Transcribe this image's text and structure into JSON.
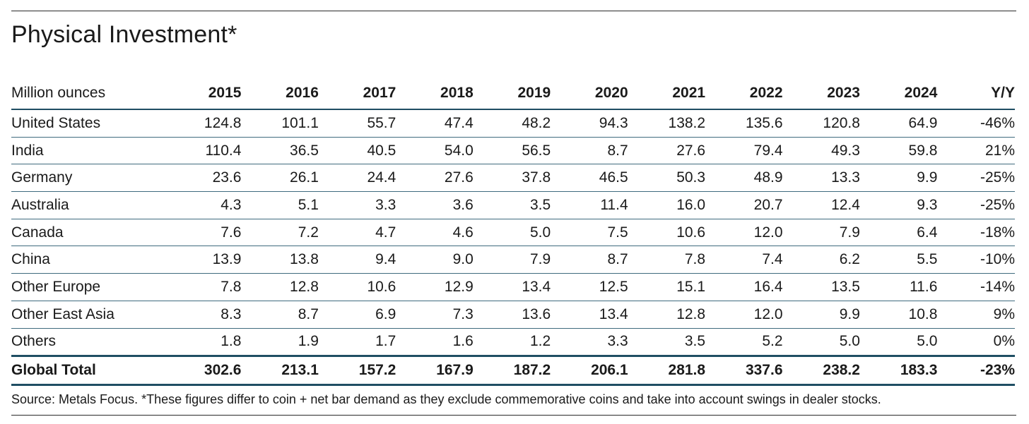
{
  "chart_data": {
    "type": "table",
    "title": "Physical Investment*",
    "unit_label": "Million ounces",
    "columns": [
      "2015",
      "2016",
      "2017",
      "2018",
      "2019",
      "2020",
      "2021",
      "2022",
      "2023",
      "2024",
      "Y/Y"
    ],
    "rows": [
      {
        "label": "United States",
        "values": [
          "124.8",
          "101.1",
          "55.7",
          "47.4",
          "48.2",
          "94.3",
          "138.2",
          "135.6",
          "120.8",
          "64.9",
          "-46%"
        ]
      },
      {
        "label": "India",
        "values": [
          "110.4",
          "36.5",
          "40.5",
          "54.0",
          "56.5",
          "8.7",
          "27.6",
          "79.4",
          "49.3",
          "59.8",
          "21%"
        ]
      },
      {
        "label": "Germany",
        "values": [
          "23.6",
          "26.1",
          "24.4",
          "27.6",
          "37.8",
          "46.5",
          "50.3",
          "48.9",
          "13.3",
          "9.9",
          "-25%"
        ]
      },
      {
        "label": "Australia",
        "values": [
          "4.3",
          "5.1",
          "3.3",
          "3.6",
          "3.5",
          "11.4",
          "16.0",
          "20.7",
          "12.4",
          "9.3",
          "-25%"
        ]
      },
      {
        "label": "Canada",
        "values": [
          "7.6",
          "7.2",
          "4.7",
          "4.6",
          "5.0",
          "7.5",
          "10.6",
          "12.0",
          "7.9",
          "6.4",
          "-18%"
        ]
      },
      {
        "label": "China",
        "values": [
          "13.9",
          "13.8",
          "9.4",
          "9.0",
          "7.9",
          "8.7",
          "7.8",
          "7.4",
          "6.2",
          "5.5",
          "-10%"
        ]
      },
      {
        "label": "Other Europe",
        "values": [
          "7.8",
          "12.8",
          "10.6",
          "12.9",
          "13.4",
          "12.5",
          "15.1",
          "16.4",
          "13.5",
          "11.6",
          "-14%"
        ]
      },
      {
        "label": "Other East Asia",
        "values": [
          "8.3",
          "8.7",
          "6.9",
          "7.3",
          "13.6",
          "13.4",
          "12.8",
          "12.0",
          "9.9",
          "10.8",
          "9%"
        ]
      },
      {
        "label": "Others",
        "values": [
          "1.8",
          "1.9",
          "1.7",
          "1.6",
          "1.2",
          "3.3",
          "3.5",
          "5.2",
          "5.0",
          "5.0",
          "0%"
        ]
      }
    ],
    "total": {
      "label": "Global Total",
      "values": [
        "302.6",
        "213.1",
        "157.2",
        "167.9",
        "187.2",
        "206.1",
        "281.8",
        "337.6",
        "238.2",
        "183.3",
        "-23%"
      ]
    },
    "source_note": "Source: Metals Focus. *These figures differ to coin + net bar demand as they exclude commemorative coins and take into account swings in dealer stocks."
  },
  "colors": {
    "rule": "#3f6b7e",
    "rule_strong": "#1f4e63"
  }
}
